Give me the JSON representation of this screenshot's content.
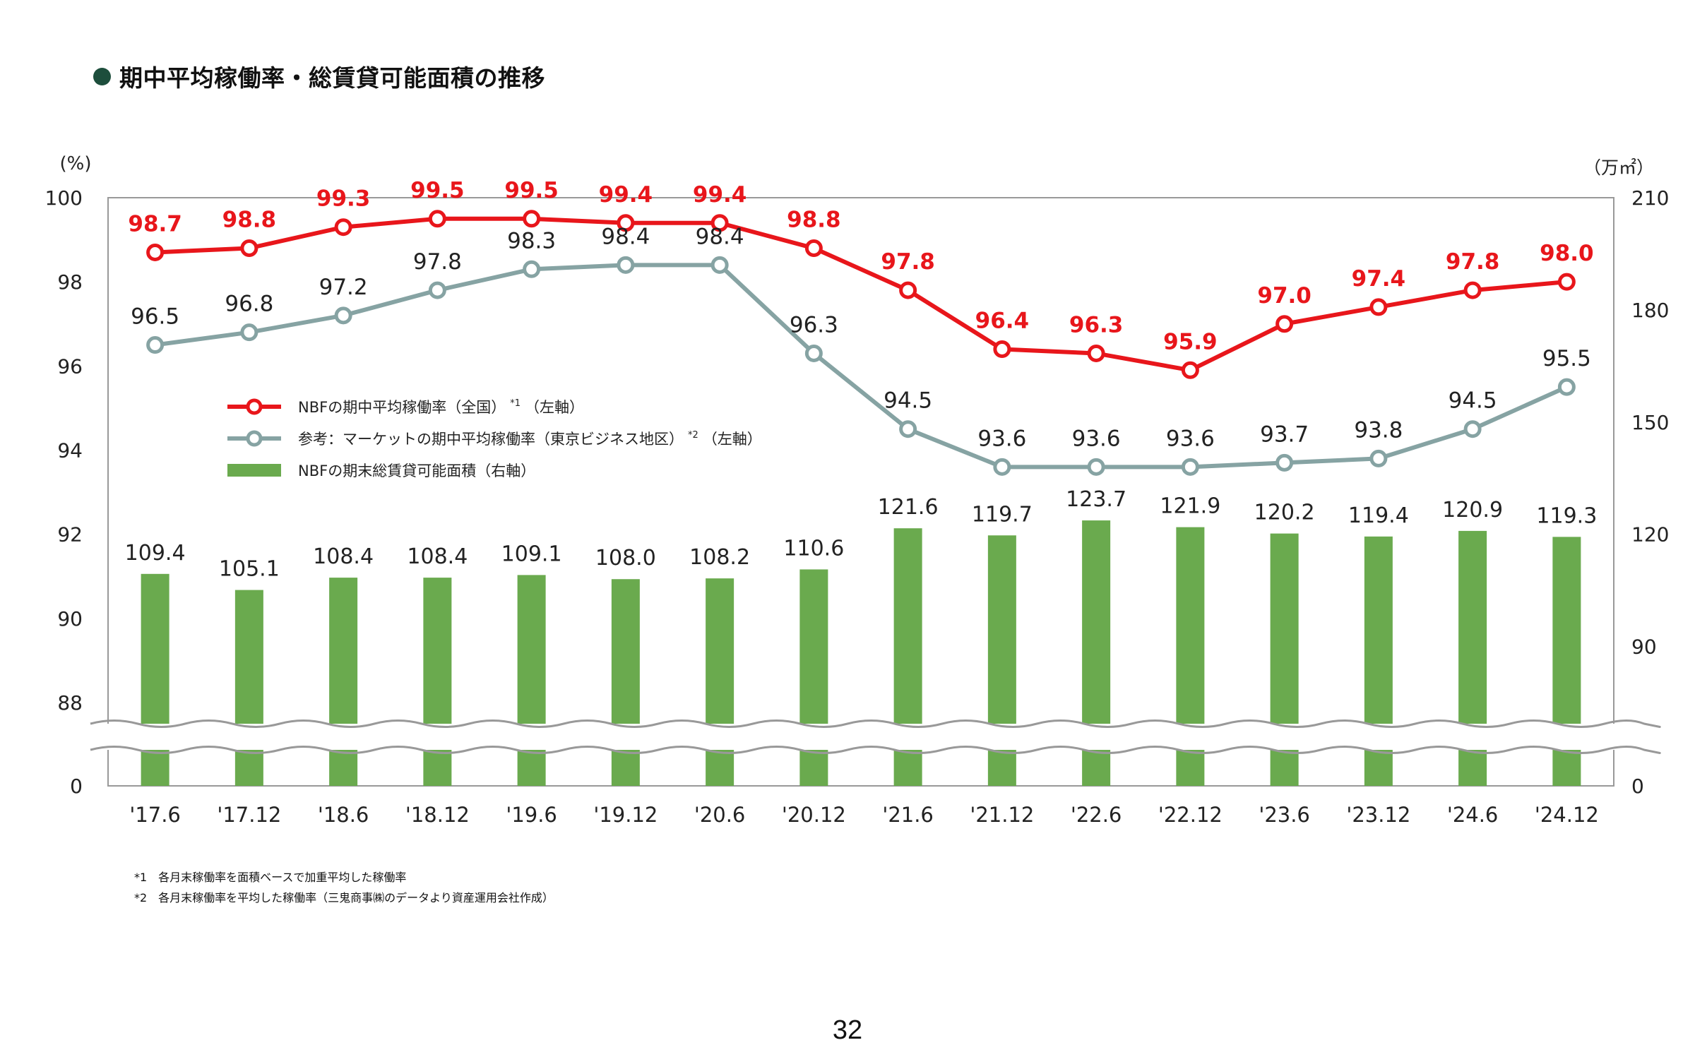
{
  "page": {
    "title": "期中平均稼働率・総賃貸可能面積の推移",
    "page_number": "32",
    "footnotes": [
      "*1　各月末稼働率を面積ベースで加重平均した稼働率",
      "*2　各月末稼働率を平均した稼働率（三鬼商事㈱のデータより資産運用会社作成）"
    ]
  },
  "colors": {
    "nbf_line": "#e8161b",
    "market_line": "#86a3a3",
    "bars": "#6aaa4e",
    "axis": "#999999",
    "title_dot": "#1d4e3c"
  },
  "chart_data": {
    "type": "bar+line",
    "categories": [
      "'17.6",
      "'17.12",
      "'18.6",
      "'18.12",
      "'19.6",
      "'19.12",
      "'20.6",
      "'20.12",
      "'21.6",
      "'21.12",
      "'22.6",
      "'22.12",
      "'23.6",
      "'23.12",
      "'24.6",
      "'24.12"
    ],
    "left_axis": {
      "unit": "(%)",
      "range": [
        88,
        100
      ],
      "ticks": [
        "100",
        "98",
        "96",
        "94",
        "92",
        "90",
        "88"
      ],
      "break_bottom": "0"
    },
    "right_axis": {
      "unit": "（万㎡）",
      "range": [
        75,
        210
      ],
      "ticks": [
        "210",
        "180",
        "150",
        "120",
        "90"
      ],
      "break_bottom": "0"
    },
    "series": [
      {
        "name": "NBFの期中平均稼働率（全国）*1（左軸）",
        "legend_label": "NBFの期中平均稼働率（全国）",
        "legend_note": "*1",
        "legend_axis": "（左軸）",
        "type": "line",
        "axis": "left",
        "values": [
          98.7,
          98.8,
          99.3,
          99.5,
          99.5,
          99.4,
          99.4,
          98.8,
          97.8,
          96.4,
          96.3,
          95.9,
          97.0,
          97.4,
          97.8,
          98.0
        ],
        "labels": [
          "98.7",
          "98.8",
          "99.3",
          "99.5",
          "99.5",
          "99.4",
          "99.4",
          "98.8",
          "97.8",
          "96.4",
          "96.3",
          "95.9",
          "97.0",
          "97.4",
          "97.8",
          "98.0"
        ]
      },
      {
        "name": "参考：マーケットの期中平均稼働率（東京ビジネス地区）*2（左軸）",
        "legend_label": "参考：マーケットの期中平均稼働率（東京ビジネス地区）",
        "legend_note": "*2",
        "legend_axis": "（左軸）",
        "type": "line",
        "axis": "left",
        "values": [
          96.5,
          96.8,
          97.2,
          97.8,
          98.3,
          98.4,
          98.4,
          96.3,
          94.5,
          93.6,
          93.6,
          93.6,
          93.7,
          93.8,
          94.5,
          95.5
        ],
        "labels": [
          "96.5",
          "96.8",
          "97.2",
          "97.8",
          "98.3",
          "98.4",
          "98.4",
          "96.3",
          "94.5",
          "93.6",
          "93.6",
          "93.6",
          "93.7",
          "93.8",
          "94.5",
          "95.5"
        ]
      },
      {
        "name": "NBFの期末総賃貸可能面積（右軸）",
        "legend_label": "NBFの期末総賃貸可能面積（右軸）",
        "type": "bar",
        "axis": "right",
        "values": [
          109.4,
          105.1,
          108.4,
          108.4,
          109.1,
          108.0,
          108.2,
          110.6,
          121.6,
          119.7,
          123.7,
          121.9,
          120.2,
          119.4,
          120.9,
          119.3
        ],
        "labels": [
          "109.4",
          "105.1",
          "108.4",
          "108.4",
          "109.1",
          "108.0",
          "108.2",
          "110.6",
          "121.6",
          "119.7",
          "123.7",
          "121.9",
          "120.2",
          "119.4",
          "120.9",
          "119.3"
        ]
      }
    ]
  }
}
